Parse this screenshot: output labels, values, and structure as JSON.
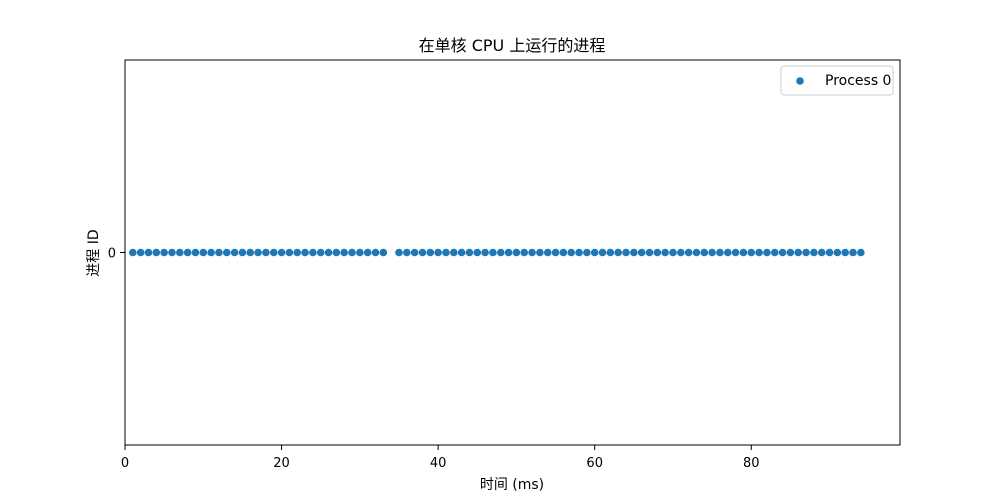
{
  "chart_data": {
    "type": "scatter",
    "title": "在单核 CPU 上运行的进程",
    "xlabel": "时间 (ms)",
    "ylabel": "进程 ID",
    "xlim": [
      0,
      99
    ],
    "ylim": [
      -0.05,
      0.05
    ],
    "xticks": [
      0,
      20,
      40,
      60,
      80
    ],
    "yticks": [
      0
    ],
    "grid": false,
    "legend_position": "top-right",
    "series": [
      {
        "name": "Process 0",
        "color": "#1f77b4",
        "y": 0,
        "x": [
          1,
          2,
          3,
          4,
          5,
          6,
          7,
          8,
          9,
          10,
          11,
          12,
          13,
          14,
          15,
          16,
          17,
          18,
          19,
          20,
          21,
          22,
          23,
          24,
          25,
          26,
          27,
          28,
          29,
          30,
          31,
          32,
          33,
          35,
          36,
          37,
          38,
          39,
          40,
          41,
          42,
          43,
          44,
          45,
          46,
          47,
          48,
          49,
          50,
          51,
          52,
          53,
          54,
          55,
          56,
          57,
          58,
          59,
          60,
          61,
          62,
          63,
          64,
          65,
          66,
          67,
          68,
          69,
          70,
          71,
          72,
          73,
          74,
          75,
          76,
          77,
          78,
          79,
          80,
          81,
          82,
          83,
          84,
          85,
          86,
          87,
          88,
          89,
          90,
          91,
          92,
          93,
          94
        ]
      }
    ]
  }
}
